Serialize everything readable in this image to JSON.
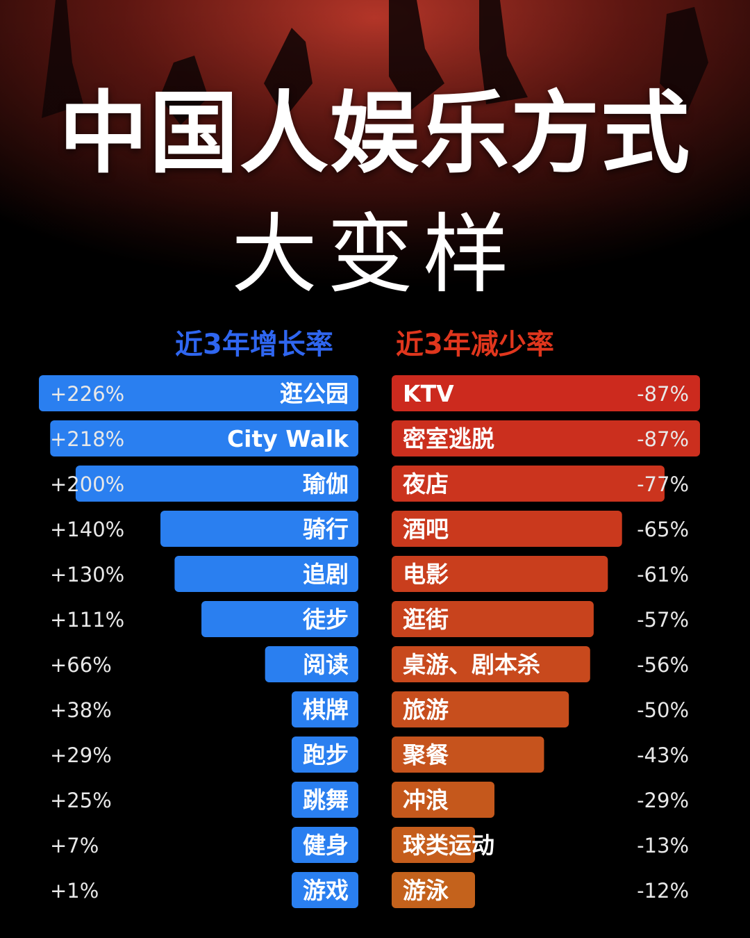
{
  "title": "中国人娱乐方式",
  "subtitle": "大变样",
  "colors": {
    "growth_bar": "#2a7ff0",
    "decline_top": "#cc2a1e",
    "decline_bottom": "#c4621c",
    "growth_header": "#2f66f0",
    "decline_header": "#e0361d",
    "value_text": "#e8e8e8"
  },
  "chart_data": [
    {
      "type": "bar",
      "title": "近3年增长率",
      "orientation": "horizontal",
      "direction": "right-aligned",
      "categories": [
        "逛公园",
        "City Walk",
        "瑜伽",
        "骑行",
        "追剧",
        "徒步",
        "阅读",
        "棋牌",
        "跑步",
        "跳舞",
        "健身",
        "游戏"
      ],
      "values": [
        226,
        218,
        200,
        140,
        130,
        111,
        66,
        38,
        29,
        25,
        7,
        1
      ],
      "value_labels": [
        "+226%",
        "+218%",
        "+200%",
        "+140%",
        "+130%",
        "+111%",
        "+66%",
        "+38%",
        "+29%",
        "+25%",
        "+7%",
        "+1%"
      ]
    },
    {
      "type": "bar",
      "title": "近3年减少率",
      "orientation": "horizontal",
      "direction": "left-aligned",
      "categories": [
        "KTV",
        "密室逃脱",
        "夜店",
        "酒吧",
        "电影",
        "逛街",
        "桌游、剧本杀",
        "旅游",
        "聚餐",
        "冲浪",
        "球类运动",
        "游泳"
      ],
      "values": [
        -87,
        -87,
        -77,
        -65,
        -61,
        -57,
        -56,
        -50,
        -43,
        -29,
        -13,
        -12
      ],
      "value_labels": [
        "-87%",
        "-87%",
        "-77%",
        "-65%",
        "-61%",
        "-57%",
        "-56%",
        "-50%",
        "-43%",
        "-29%",
        "-13%",
        "-12%"
      ]
    }
  ]
}
